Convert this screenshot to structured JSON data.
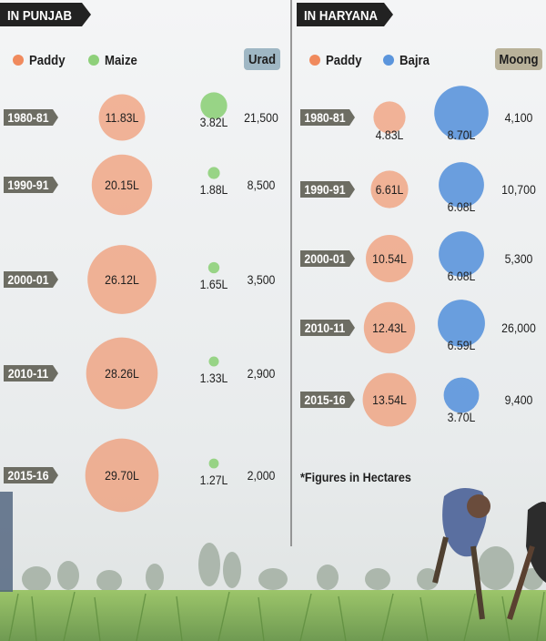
{
  "unit_note": "*Figures in Hectares",
  "colors": {
    "paddy": "#f08a5d",
    "maize": "#8ed07a",
    "bajra": "#5b95dc",
    "header_bg": "#222222",
    "year_tag": "#6d6d63",
    "urad_tag": "#9fb7c4",
    "moong_tag": "#b9b29a"
  },
  "chart_data": [
    {
      "type": "bubble",
      "title": "IN PUNJAB",
      "legend": [
        "Paddy",
        "Maize"
      ],
      "table_header": "Urad",
      "categories": [
        "1980-81",
        "1990-91",
        "2000-01",
        "2010-11",
        "2015-16"
      ],
      "series": [
        {
          "name": "Paddy",
          "values": [
            11.83,
            20.15,
            26.12,
            28.26,
            29.7
          ],
          "labels": [
            "11.83L",
            "20.15L",
            "26.12L",
            "28.26L",
            "29.70L"
          ]
        },
        {
          "name": "Maize",
          "values": [
            3.82,
            1.88,
            1.65,
            1.33,
            1.27
          ],
          "labels": [
            "3.82L",
            "1.88L",
            "1.65L",
            "1.33L",
            "1.27L"
          ]
        },
        {
          "name": "Urad",
          "values": [
            21500,
            8500,
            3500,
            2900,
            2000
          ],
          "labels": [
            "21,500",
            "8,500",
            "3,500",
            "2,900",
            "2,000"
          ]
        }
      ]
    },
    {
      "type": "bubble",
      "title": "IN HARYANA",
      "legend": [
        "Paddy",
        "Bajra"
      ],
      "table_header": "Moong",
      "categories": [
        "1980-81",
        "1990-91",
        "2000-01",
        "2010-11",
        "2015-16"
      ],
      "series": [
        {
          "name": "Paddy",
          "values": [
            4.83,
            6.61,
            10.54,
            12.43,
            13.54
          ],
          "labels": [
            "4.83L",
            "6.61L",
            "10.54L",
            "12.43L",
            "13.54L"
          ]
        },
        {
          "name": "Bajra",
          "values": [
            8.7,
            6.08,
            6.08,
            6.59,
            3.7
          ],
          "labels": [
            "8.70L",
            "6.08L",
            "6.08L",
            "6.59L",
            "3.70L"
          ]
        },
        {
          "name": "Moong",
          "values": [
            4100,
            10700,
            5300,
            26000,
            9400
          ],
          "labels": [
            "4,100",
            "10,700",
            "5,300",
            "26,000",
            "9,400"
          ]
        }
      ]
    }
  ]
}
